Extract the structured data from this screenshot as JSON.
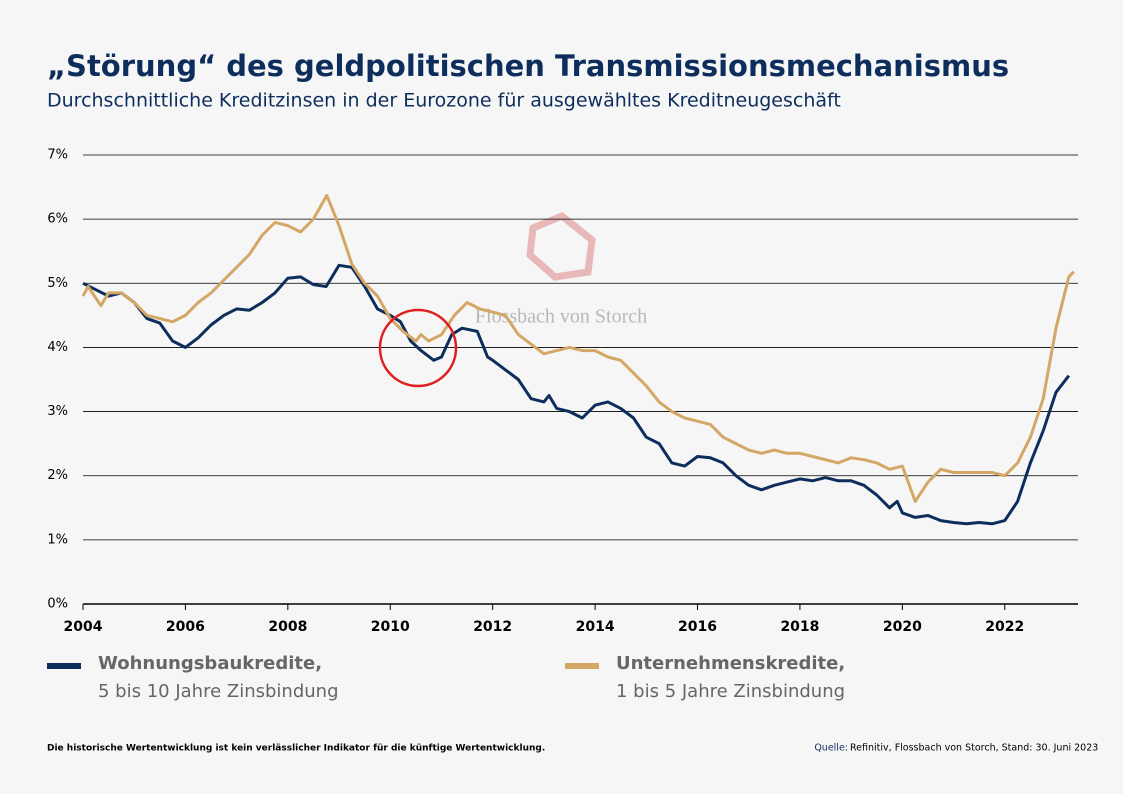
{
  "chart_data": {
    "type": "line",
    "title": "„Störung“ des geldpolitischen Transmissionsmechanismus",
    "subtitle": "Durchschnittliche Kreditzinsen in der Eurozone für ausgewähltes Kreditneugeschäft",
    "xlim": [
      2004,
      2023.43
    ],
    "xticks": [
      2004,
      2006,
      2008,
      2010,
      2012,
      2014,
      2016,
      2018,
      2020,
      2022
    ],
    "ylim": [
      0,
      7
    ],
    "yticks": [
      {
        "value": 0,
        "label": "0%"
      },
      {
        "value": 1,
        "label": "1%"
      },
      {
        "value": 2,
        "label": "2%"
      },
      {
        "value": 3,
        "label": "3%"
      },
      {
        "value": 4,
        "label": "4%"
      },
      {
        "value": 5,
        "label": "5%"
      },
      {
        "value": 6,
        "label": "6%"
      },
      {
        "value": 7,
        "label": "7%"
      }
    ],
    "grid": true,
    "series": [
      {
        "name": "Wohnungsbaukredite,",
        "description": "5 bis 10 Jahre Zinsbindung",
        "color": "#0d2e5c",
        "x": [
          2004,
          2004.25,
          2004.5,
          2004.75,
          2005,
          2005.25,
          2005.5,
          2005.75,
          2006,
          2006.25,
          2006.5,
          2006.75,
          2007,
          2007.25,
          2007.5,
          2007.75,
          2008,
          2008.25,
          2008.5,
          2008.75,
          2009,
          2009.25,
          2009.5,
          2009.75,
          2010,
          2010.2,
          2010.4,
          2010.6,
          2010.85,
          2011,
          2011.2,
          2011.4,
          2011.7,
          2011.9,
          2012,
          2012.25,
          2012.5,
          2012.75,
          2013,
          2013.1,
          2013.25,
          2013.5,
          2013.75,
          2014,
          2014.25,
          2014.5,
          2014.75,
          2015,
          2015.25,
          2015.5,
          2015.75,
          2016,
          2016.25,
          2016.5,
          2016.75,
          2017,
          2017.25,
          2017.5,
          2017.75,
          2018,
          2018.25,
          2018.5,
          2018.75,
          2019,
          2019.25,
          2019.5,
          2019.75,
          2019.9,
          2020,
          2020.25,
          2020.5,
          2020.75,
          2021,
          2021.25,
          2021.5,
          2021.75,
          2022,
          2022.25,
          2022.5,
          2022.75,
          2023,
          2023.25
        ],
        "values": [
          5.0,
          4.9,
          4.8,
          4.85,
          4.7,
          4.45,
          4.38,
          4.1,
          4.0,
          4.15,
          4.35,
          4.5,
          4.6,
          4.58,
          4.7,
          4.85,
          5.08,
          5.1,
          4.98,
          4.95,
          5.28,
          5.25,
          4.95,
          4.6,
          4.5,
          4.4,
          4.1,
          3.95,
          3.8,
          3.85,
          4.2,
          4.3,
          4.25,
          3.85,
          3.8,
          3.65,
          3.5,
          3.2,
          3.15,
          3.25,
          3.05,
          3.0,
          2.9,
          3.1,
          3.15,
          3.05,
          2.9,
          2.6,
          2.5,
          2.2,
          2.15,
          2.3,
          2.28,
          2.2,
          2.0,
          1.85,
          1.78,
          1.85,
          1.9,
          1.95,
          1.92,
          1.97,
          1.92,
          1.92,
          1.85,
          1.7,
          1.5,
          1.6,
          1.42,
          1.35,
          1.38,
          1.3,
          1.27,
          1.25,
          1.27,
          1.25,
          1.3,
          1.6,
          2.2,
          2.7,
          3.3,
          3.56
        ]
      },
      {
        "name": "Unternehmenskredite,",
        "description": "1 bis 5 Jahre Zinsbindung",
        "color": "#d4a767",
        "x": [
          2004,
          2004.1,
          2004.35,
          2004.5,
          2004.75,
          2005,
          2005.25,
          2005.5,
          2005.75,
          2006,
          2006.25,
          2006.5,
          2006.75,
          2007,
          2007.25,
          2007.5,
          2007.75,
          2008,
          2008.25,
          2008.5,
          2008.76,
          2009,
          2009.25,
          2009.5,
          2009.75,
          2010,
          2010.25,
          2010.5,
          2010.6,
          2010.75,
          2011,
          2011.25,
          2011.5,
          2011.75,
          2012,
          2012.25,
          2012.5,
          2012.75,
          2013,
          2013.25,
          2013.5,
          2013.75,
          2014,
          2014.25,
          2014.5,
          2014.75,
          2015,
          2015.25,
          2015.5,
          2015.75,
          2016,
          2016.25,
          2016.5,
          2016.75,
          2017,
          2017.25,
          2017.5,
          2017.75,
          2018,
          2018.25,
          2018.5,
          2018.75,
          2019,
          2019.25,
          2019.5,
          2019.75,
          2020,
          2020.25,
          2020.5,
          2020.75,
          2021,
          2021.25,
          2021.5,
          2021.75,
          2022,
          2022.25,
          2022.5,
          2022.75,
          2023,
          2023.25,
          2023.35
        ],
        "values": [
          4.8,
          4.95,
          4.65,
          4.85,
          4.85,
          4.7,
          4.5,
          4.45,
          4.4,
          4.5,
          4.7,
          4.85,
          5.05,
          5.25,
          5.45,
          5.75,
          5.95,
          5.9,
          5.8,
          6.0,
          6.37,
          5.9,
          5.3,
          5.0,
          4.8,
          4.45,
          4.25,
          4.1,
          4.2,
          4.1,
          4.2,
          4.5,
          4.7,
          4.6,
          4.55,
          4.5,
          4.2,
          4.05,
          3.9,
          3.95,
          4.0,
          3.95,
          3.95,
          3.85,
          3.8,
          3.6,
          3.4,
          3.15,
          3.0,
          2.9,
          2.85,
          2.8,
          2.6,
          2.5,
          2.4,
          2.35,
          2.4,
          2.35,
          2.35,
          2.3,
          2.25,
          2.2,
          2.28,
          2.25,
          2.2,
          2.1,
          2.15,
          1.6,
          1.9,
          2.1,
          2.05,
          2.05,
          2.05,
          2.05,
          2.0,
          2.2,
          2.6,
          3.2,
          4.3,
          5.1,
          5.18
        ]
      }
    ],
    "watermark": "Flossbach von Storch",
    "disclaimer": "Die historische Wertentwicklung ist kein verlässlicher Indikator für die künftige Wertentwicklung.",
    "source_label": "Quelle:",
    "source": "Refinitiv, Flossbach von Storch, Stand: 30. Juni 2023"
  }
}
